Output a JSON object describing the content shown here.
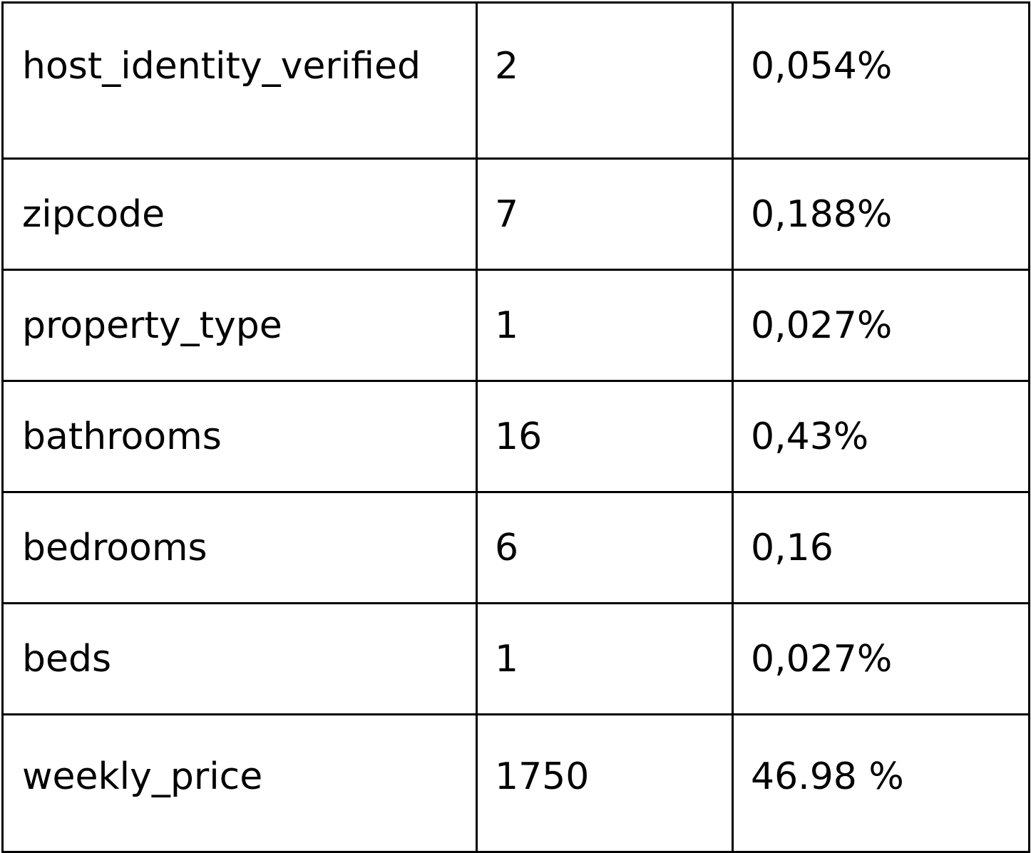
{
  "table": {
    "rows": [
      {
        "name": "host_identity_verified",
        "count": "2",
        "percent": "0,054%"
      },
      {
        "name": "zipcode",
        "count": "7",
        "percent": "0,188%"
      },
      {
        "name": "property_type",
        "count": "1",
        "percent": "0,027%"
      },
      {
        "name": "bathrooms",
        "count": "16",
        "percent": "0,43%"
      },
      {
        "name": "bedrooms",
        "count": "6",
        "percent": "0,16"
      },
      {
        "name": "beds",
        "count": "1",
        "percent": "0,027%"
      },
      {
        "name": "weekly_price",
        "count": "1750",
        "percent": "46.98 %"
      }
    ]
  }
}
